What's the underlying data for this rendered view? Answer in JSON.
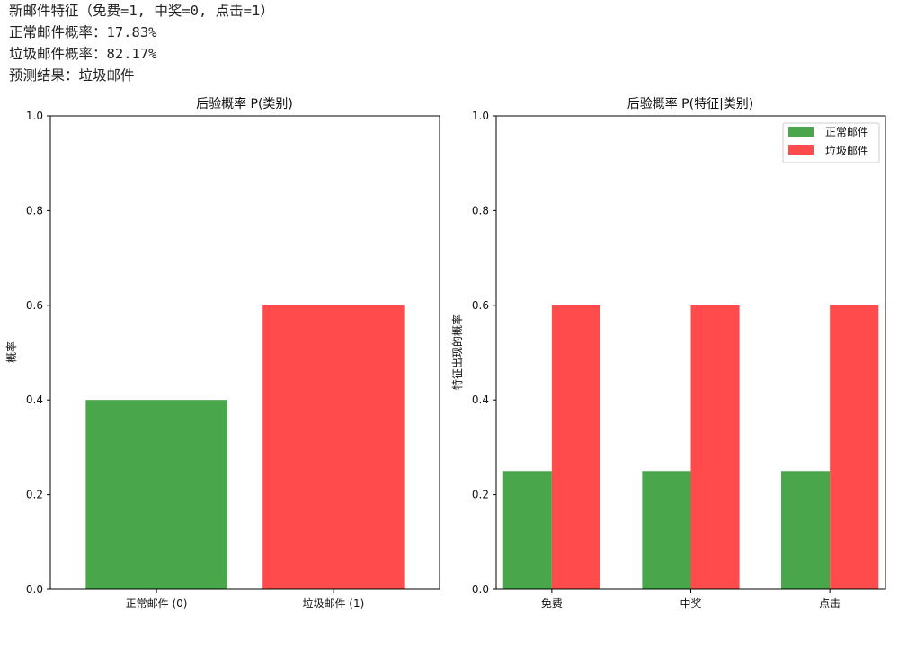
{
  "console": {
    "lines": [
      "新邮件特征（免费=1, 中奖=0, 点击=1）",
      "正常邮件概率：17.83%",
      "垃圾邮件概率：82.17%",
      "预测结果：垃圾邮件"
    ]
  },
  "colors": {
    "normal": "#4aa64a",
    "spam": "#ff4b4b"
  },
  "chart_data": [
    {
      "type": "bar",
      "title": "后验概率 P(类别)",
      "xlabel": "",
      "ylabel": "概率",
      "categories": [
        "正常邮件 (0)",
        "垃圾邮件 (1)"
      ],
      "values": [
        0.4,
        0.6
      ],
      "ylim": [
        0,
        1.0
      ],
      "yticks": [
        "0.0",
        "0.2",
        "0.4",
        "0.6",
        "0.8",
        "1.0"
      ],
      "grid": false
    },
    {
      "type": "bar",
      "title": "后验概率 P(特征|类别)",
      "xlabel": "",
      "ylabel": "特征出现的概率",
      "categories": [
        "免费",
        "中奖",
        "点击"
      ],
      "series": [
        {
          "name": "正常邮件",
          "values": [
            0.25,
            0.25,
            0.25
          ]
        },
        {
          "name": "垃圾邮件",
          "values": [
            0.6,
            0.6,
            0.6
          ]
        }
      ],
      "ylim": [
        0,
        1.0
      ],
      "yticks": [
        "0.0",
        "0.2",
        "0.4",
        "0.6",
        "0.8",
        "1.0"
      ],
      "legend": "top-right",
      "grid": false
    }
  ]
}
